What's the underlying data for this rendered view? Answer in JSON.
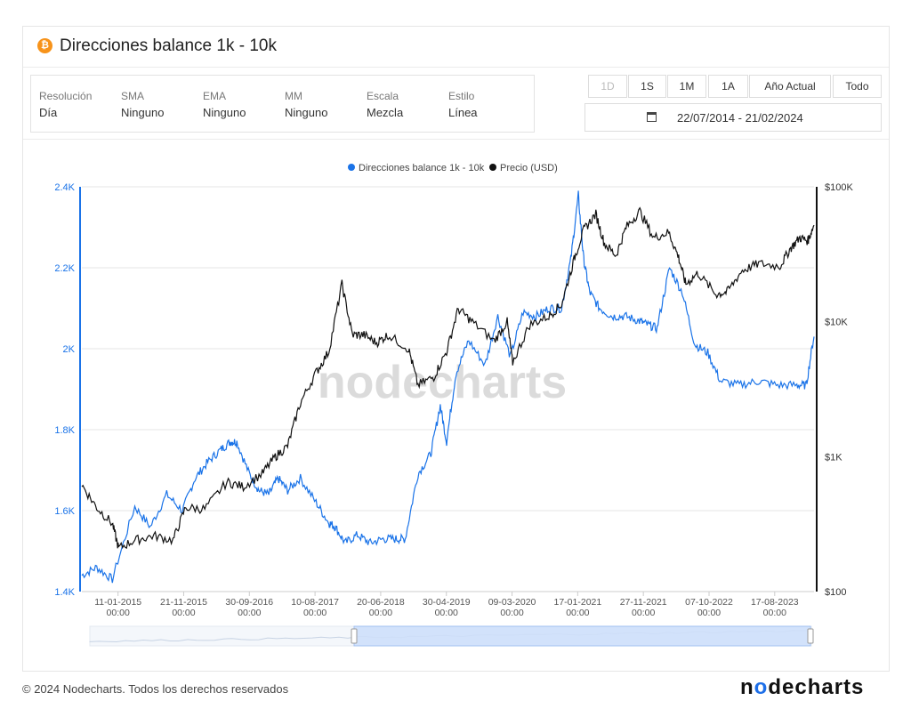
{
  "header": {
    "title": "Direcciones balance 1k - 10k",
    "icon": "bitcoin-icon"
  },
  "options": [
    {
      "label": "Resolución",
      "value": "Día"
    },
    {
      "label": "SMA",
      "value": "Ninguno"
    },
    {
      "label": "EMA",
      "value": "Ninguno"
    },
    {
      "label": "MM",
      "value": "Ninguno"
    },
    {
      "label": "Escala",
      "value": "Mezcla"
    },
    {
      "label": "Estilo",
      "value": "Línea"
    }
  ],
  "ranges": [
    "1D",
    "1S",
    "1M",
    "1A",
    "Año Actual",
    "Todo"
  ],
  "date_range": "22/07/2014 - 21/02/2024",
  "watermark": "nodecharts",
  "footer": {
    "copyright": "© 2024 Nodecharts. Todos los derechos reservados",
    "brand": "nodecharts"
  },
  "colors": {
    "addresses": "#1a73e8",
    "price": "#111111",
    "bitcoin": "#f7931a"
  },
  "chart_data": {
    "type": "line",
    "legend": [
      "Direcciones balance 1k - 10k",
      "Precio (USD)"
    ],
    "legend_position": "top-center",
    "grid": true,
    "y_left": {
      "ticks": [
        "2.4K",
        "2.2K",
        "2K",
        "1.8K",
        "1.6K",
        "1.4K"
      ],
      "range": [
        1400,
        2400
      ]
    },
    "y_right": {
      "ticks": [
        "$100K",
        "$10K",
        "$1K",
        "$100"
      ],
      "scale": "log",
      "range": [
        100,
        100000
      ]
    },
    "x_ticks": [
      "11-01-2015\n00:00",
      "21-11-2015\n00:00",
      "30-09-2016\n00:00",
      "10-08-2017\n00:00",
      "20-06-2018\n00:00",
      "30-04-2019\n00:00",
      "09-03-2020\n00:00",
      "17-01-2021\n00:00",
      "27-11-2021\n00:00",
      "07-10-2022\n00:00",
      "17-08-2023\n00:00"
    ],
    "series": [
      {
        "name": "Direcciones balance 1k - 10k",
        "axis": "left",
        "x": [
          "2014-07-22",
          "2014-10-01",
          "2014-12-15",
          "2015-04-01",
          "2015-06-15",
          "2015-09-01",
          "2015-11-15",
          "2016-01-15",
          "2016-03-15",
          "2016-05-15",
          "2016-07-01",
          "2016-08-01",
          "2016-10-01",
          "2016-11-15",
          "2017-01-01",
          "2017-02-15",
          "2017-04-01",
          "2017-06-01",
          "2017-08-15",
          "2017-10-15",
          "2017-11-15",
          "2018-01-01",
          "2018-03-01",
          "2018-05-01",
          "2018-07-01",
          "2018-09-01",
          "2018-10-15",
          "2018-12-15",
          "2019-02-15",
          "2019-04-01",
          "2019-05-01",
          "2019-06-15",
          "2019-08-15",
          "2019-11-01",
          "2020-01-01",
          "2020-03-01",
          "2020-05-01",
          "2020-07-01",
          "2020-09-01",
          "2020-11-01",
          "2020-12-15",
          "2021-01-20",
          "2021-02-15",
          "2021-03-15",
          "2021-05-01",
          "2021-07-01",
          "2021-09-01",
          "2021-11-01",
          "2021-12-15",
          "2022-02-01",
          "2022-04-01",
          "2022-06-01",
          "2022-08-01",
          "2022-10-01",
          "2022-12-01",
          "2023-03-01",
          "2023-06-01",
          "2023-09-01",
          "2023-12-01",
          "2024-01-15",
          "2024-02-21"
        ],
        "y": [
          1440,
          1460,
          1430,
          1610,
          1560,
          1640,
          1600,
          1680,
          1720,
          1750,
          1770,
          1770,
          1690,
          1650,
          1640,
          1680,
          1650,
          1680,
          1620,
          1570,
          1560,
          1520,
          1540,
          1520,
          1530,
          1530,
          1530,
          1690,
          1740,
          1860,
          1770,
          1940,
          2020,
          1960,
          2080,
          1980,
          2090,
          2080,
          2100,
          2100,
          2220,
          2380,
          2220,
          2140,
          2100,
          2080,
          2080,
          2070,
          2060,
          2050,
          2200,
          2140,
          2010,
          1990,
          1920,
          1910,
          1920,
          1910,
          1910,
          1910,
          2030
        ]
      },
      {
        "name": "Precio (USD)",
        "axis": "right",
        "x": [
          "2014-07-22",
          "2014-10-01",
          "2014-12-15",
          "2015-01-14",
          "2015-04-01",
          "2015-07-01",
          "2015-10-01",
          "2015-12-01",
          "2016-03-01",
          "2016-06-15",
          "2016-09-01",
          "2016-12-01",
          "2017-02-01",
          "2017-04-01",
          "2017-06-01",
          "2017-08-15",
          "2017-10-15",
          "2017-12-17",
          "2018-02-05",
          "2018-04-01",
          "2018-06-01",
          "2018-07-25",
          "2018-11-01",
          "2018-12-15",
          "2019-03-01",
          "2019-05-01",
          "2019-06-26",
          "2019-09-01",
          "2019-12-15",
          "2020-02-15",
          "2020-03-12",
          "2020-06-01",
          "2020-09-01",
          "2020-11-01",
          "2020-12-31",
          "2021-02-15",
          "2021-04-14",
          "2021-05-25",
          "2021-07-20",
          "2021-09-05",
          "2021-11-10",
          "2022-01-15",
          "2022-03-28",
          "2022-05-15",
          "2022-06-18",
          "2022-08-15",
          "2022-11-09",
          "2023-01-01",
          "2023-03-15",
          "2023-06-01",
          "2023-09-11",
          "2023-11-01",
          "2023-12-15",
          "2024-01-23",
          "2024-02-21"
        ],
        "y": [
          620,
          420,
          320,
          210,
          240,
          260,
          240,
          420,
          410,
          650,
          600,
          750,
          1000,
          1200,
          2500,
          4200,
          6000,
          19000,
          8000,
          8000,
          7000,
          8000,
          6300,
          3400,
          3900,
          6000,
          12500,
          10000,
          7200,
          10000,
          5000,
          9500,
          11000,
          13500,
          29000,
          48000,
          63000,
          38000,
          31000,
          50000,
          66000,
          42000,
          46000,
          30000,
          19000,
          23000,
          16000,
          16600,
          24000,
          27000,
          25800,
          35000,
          42000,
          40000,
          52000
        ]
      }
    ]
  }
}
